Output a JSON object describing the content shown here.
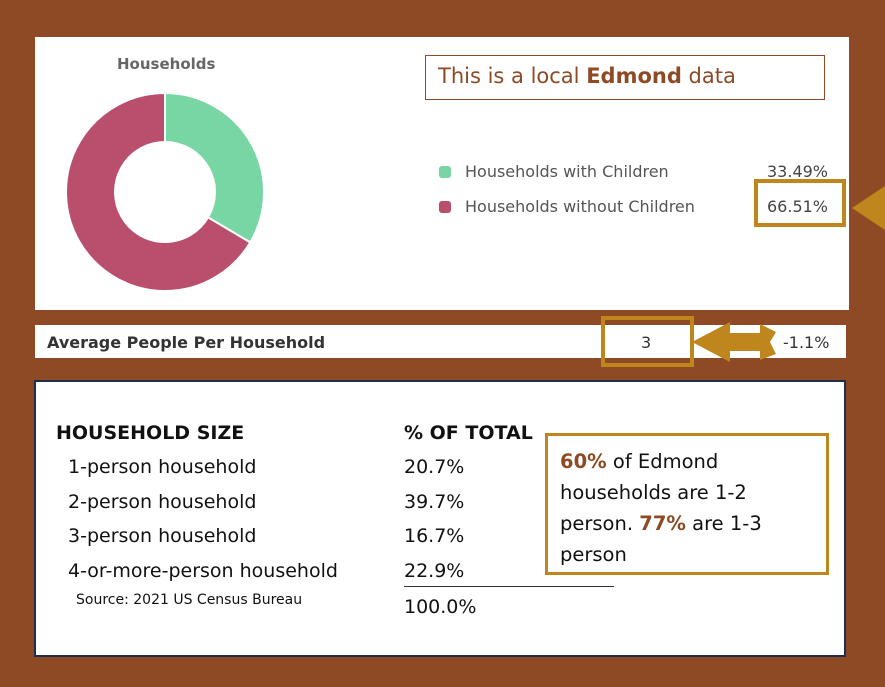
{
  "top_panel": {
    "note_prefix": "This is a local ",
    "note_bold": "Edmond",
    "note_suffix": " data"
  },
  "chart_data": {
    "type": "pie",
    "title": "Households",
    "series": [
      {
        "name": "Households with Children",
        "value": 33.49,
        "label": "33.49%",
        "color": "#77D6A3"
      },
      {
        "name": "Households without Children",
        "value": 66.51,
        "label": "66.51%",
        "color": "#BA4E6D"
      }
    ],
    "legend_position": "right"
  },
  "avg_row": {
    "label": "Average People Per Household",
    "value": "3",
    "change": "-1.1%"
  },
  "size_table": {
    "header_size": "HOUSEHOLD SIZE",
    "header_pct": "% OF TOTAL",
    "rows": [
      {
        "size": "1-person household",
        "pct": "20.7%"
      },
      {
        "size": "2-person household",
        "pct": "39.7%"
      },
      {
        "size": "3-person household",
        "pct": "16.7%"
      },
      {
        "size": "4-or-more-person household",
        "pct": "22.9%"
      }
    ],
    "total": "100.0%",
    "source": "Source: 2021 US Census Bureau"
  },
  "summary": {
    "pct1": "60%",
    "text1": " of Edmond households are 1-2 person.  ",
    "pct2": "77%",
    "text2": " are 1-3 person"
  },
  "colors": {
    "background": "#8E4A24",
    "highlight": "#C0861E"
  }
}
